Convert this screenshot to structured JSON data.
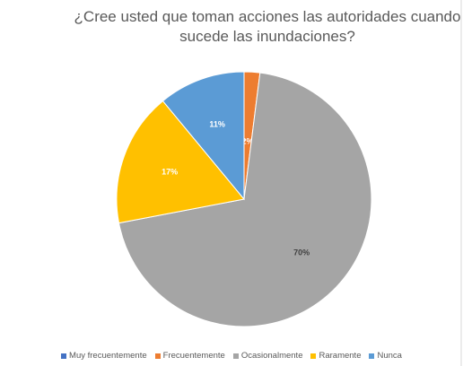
{
  "chart_data": {
    "type": "pie",
    "title": "¿Cree usted que toman acciones las autoridades cuando sucede las inundaciones?",
    "categories": [
      "Muy frecuentemente",
      "Frecuentemente",
      "Ocasionalmente",
      "Raramente",
      "Nunca"
    ],
    "values": [
      0,
      2,
      70,
      17,
      11
    ],
    "value_labels": [
      null,
      "2%",
      "70%",
      "17%",
      "11%"
    ],
    "colors": [
      "#4472c4",
      "#ed7d31",
      "#a5a5a5",
      "#ffc000",
      "#5b9bd5"
    ],
    "legend": "bottom"
  }
}
